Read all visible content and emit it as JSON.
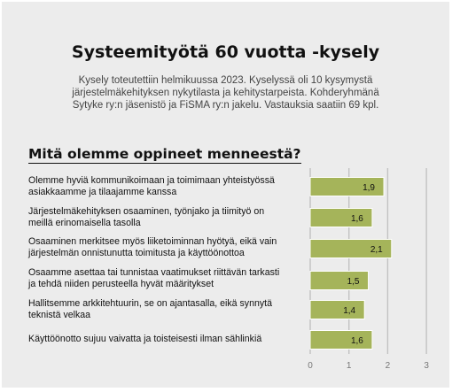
{
  "header": {
    "title": "Systeemityötä 60 vuotta -kysely",
    "intro_lines": [
      "Kysely toteutettiin helmikuussa 2023. Kyselyssä oli 10 kysymystä",
      "järjestelmäkehityksen nykytilasta ja kehitystarpeista. Kohderyhmänä",
      "Sytyke ry:n jäsenistö ja FiSMA ry:n jakelu. Vastauksia saatiin 69 kpl."
    ]
  },
  "section": {
    "title": "Mitä olemme oppineet menneestä?"
  },
  "chart_data": {
    "type": "bar",
    "orientation": "horizontal",
    "categories": [
      [
        "Olemme hyviä kommunikoimaan ja toimimaan yhteistyössä",
        "asiakkaamme ja tilaajamme kanssa"
      ],
      [
        "Järjestelmäkehityksen osaaminen, työnjako ja tiimityö on",
        "meillä erinomaisella tasolla"
      ],
      [
        "Osaaminen merkitsee myös liiketoiminnan hyötyä, eikä vain",
        "järjestelmän onnistunutta toimitusta ja käyttöönottoa"
      ],
      [
        "Osaamme asettaa tai tunnistaa vaatimukset riittävän tarkasti",
        "ja tehdä niiden perusteella hyvät määritykset"
      ],
      [
        "Hallitsemme arkkitehtuurin, se on ajantasalla, eikä synnytä",
        "teknistä velkaa"
      ],
      [
        "Käyttöönotto sujuu vaivatta ja toisteisesti ilman sählinkiä"
      ]
    ],
    "values": [
      1.9,
      1.6,
      2.1,
      1.5,
      1.4,
      1.6
    ],
    "value_labels": [
      "1,9",
      "1,6",
      "2,1",
      "1,5",
      "1,4",
      "1,6"
    ],
    "xlim": [
      0,
      3
    ],
    "xticks": [
      "0",
      "1",
      "2",
      "3"
    ],
    "grid": true,
    "bar_color": "#a5b45a",
    "bar_edge_color": "#ffffff",
    "grid_color": "#c2c2c2"
  }
}
